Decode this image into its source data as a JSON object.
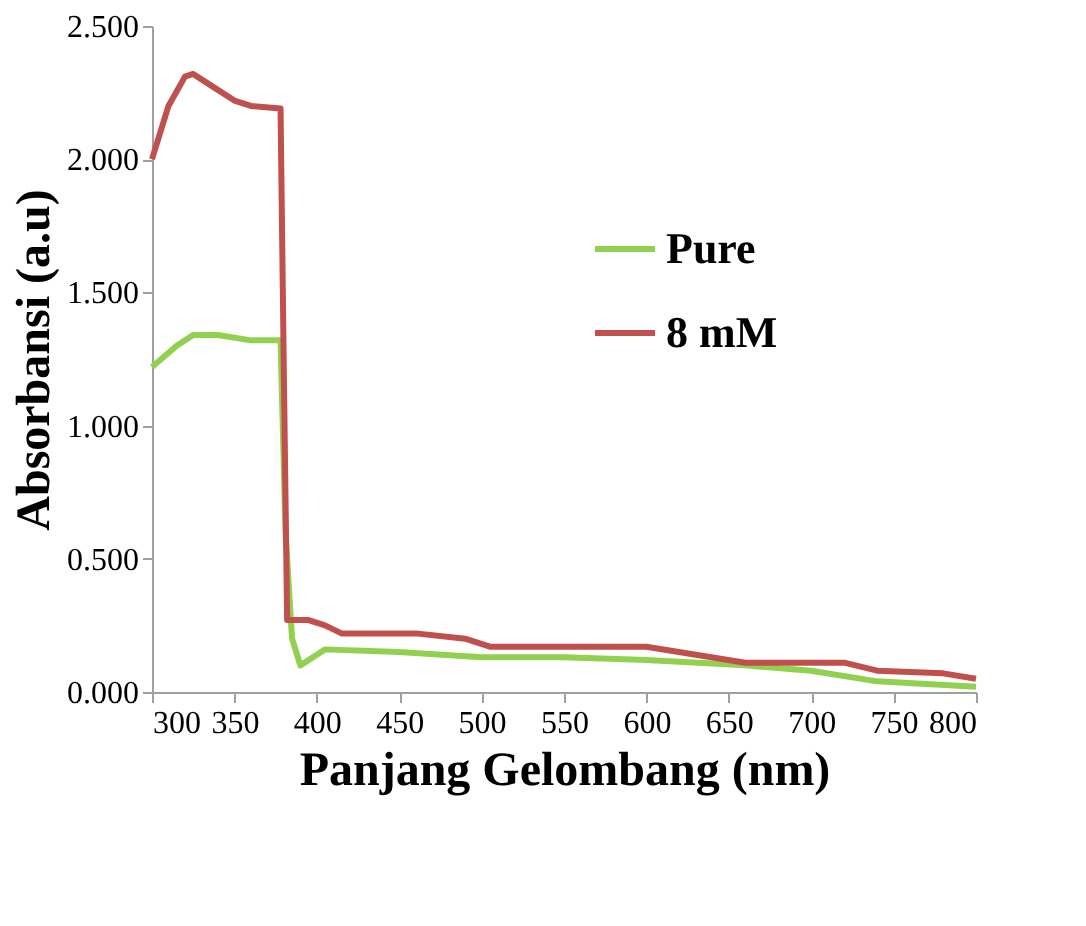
{
  "chart_data": {
    "type": "line",
    "xlabel": "Panjang Gelombang (nm)",
    "ylabel": "Absorbansi (a.u)",
    "xlim": [
      300,
      800
    ],
    "xticks": [
      300,
      350,
      400,
      450,
      500,
      550,
      600,
      650,
      700,
      750,
      800
    ],
    "ylim": [
      0,
      2.5
    ],
    "yticks": [
      {
        "value": 0,
        "label": "0.000"
      },
      {
        "value": 0.5,
        "label": "0.500"
      },
      {
        "value": 1,
        "label": "1.000"
      },
      {
        "value": 1.5,
        "label": "1.500"
      },
      {
        "value": 2,
        "label": "2.000"
      },
      {
        "value": 2.5,
        "label": "2.500"
      }
    ],
    "grid": false,
    "legend": "right",
    "marker": "none",
    "line_style": "solid",
    "series": [
      {
        "name": "Pure",
        "color": "#92d050",
        "x": [
          300,
          315,
          325,
          340,
          360,
          378,
          381,
          385,
          390,
          400,
          405,
          450,
          500,
          550,
          600,
          660,
          700,
          740,
          800
        ],
        "values": [
          1.22,
          1.3,
          1.34,
          1.34,
          1.32,
          1.32,
          0.6,
          0.2,
          0.1,
          0.14,
          0.16,
          0.15,
          0.13,
          0.13,
          0.12,
          0.1,
          0.08,
          0.04,
          0.02
        ]
      },
      {
        "name": "8 mM",
        "color": "#c0504d",
        "x": [
          300,
          310,
          320,
          325,
          335,
          350,
          360,
          378,
          380,
          382,
          395,
          405,
          415,
          460,
          490,
          505,
          600,
          630,
          660,
          720,
          740,
          780,
          800
        ],
        "values": [
          2.0,
          2.2,
          2.31,
          2.32,
          2.28,
          2.22,
          2.2,
          2.19,
          1.2,
          0.27,
          0.27,
          0.25,
          0.22,
          0.22,
          0.2,
          0.17,
          0.17,
          0.14,
          0.11,
          0.11,
          0.08,
          0.07,
          0.05
        ]
      }
    ]
  }
}
